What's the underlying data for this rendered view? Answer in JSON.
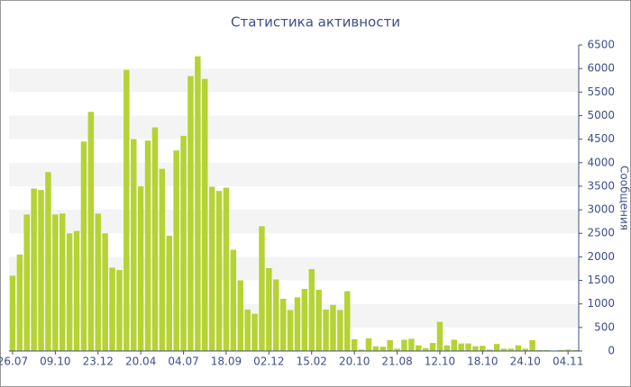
{
  "chart_data": {
    "type": "bar",
    "title": "Статистика активности",
    "y_label": "Сообщения",
    "categories": [
      "26.07",
      null,
      null,
      null,
      null,
      null,
      "09.10",
      null,
      null,
      null,
      null,
      null,
      "23.12",
      null,
      null,
      null,
      null,
      null,
      "20.04",
      null,
      null,
      null,
      null,
      null,
      "04.07",
      null,
      null,
      null,
      null,
      null,
      "18.09",
      null,
      null,
      null,
      null,
      null,
      "02.12",
      null,
      null,
      null,
      null,
      null,
      "15.02",
      null,
      null,
      null,
      null,
      null,
      "20.10",
      null,
      null,
      null,
      null,
      null,
      "21.08",
      null,
      null,
      null,
      null,
      null,
      "12.10",
      null,
      null,
      null,
      null,
      null,
      "18.10",
      null,
      null,
      null,
      null,
      null,
      "24.10",
      null,
      null,
      null,
      null,
      null,
      "04.11",
      null
    ],
    "values": [
      1600,
      2050,
      2900,
      3450,
      3420,
      3800,
      2900,
      2920,
      2500,
      2550,
      4450,
      5080,
      2920,
      2500,
      1770,
      1720,
      5970,
      4500,
      3500,
      4470,
      4750,
      3870,
      2450,
      4260,
      4570,
      5840,
      6260,
      5780,
      3490,
      3400,
      3470,
      2150,
      1500,
      880,
      790,
      2650,
      1760,
      1520,
      1110,
      870,
      1140,
      1320,
      1740,
      1300,
      880,
      980,
      870,
      1270,
      250,
      30,
      270,
      100,
      90,
      230,
      50,
      240,
      260,
      120,
      60,
      170,
      620,
      120,
      240,
      160,
      160,
      100,
      110,
      30,
      150,
      50,
      50,
      120,
      50,
      230,
      20,
      20,
      10,
      20,
      30,
      20
    ],
    "color": "#b5d334",
    "ylim": [
      0,
      6500
    ],
    "yticks": [
      0,
      500,
      1000,
      1500,
      2000,
      2500,
      3000,
      3500,
      4000,
      4500,
      5000,
      5500,
      6000,
      6500
    ],
    "grid": true
  }
}
